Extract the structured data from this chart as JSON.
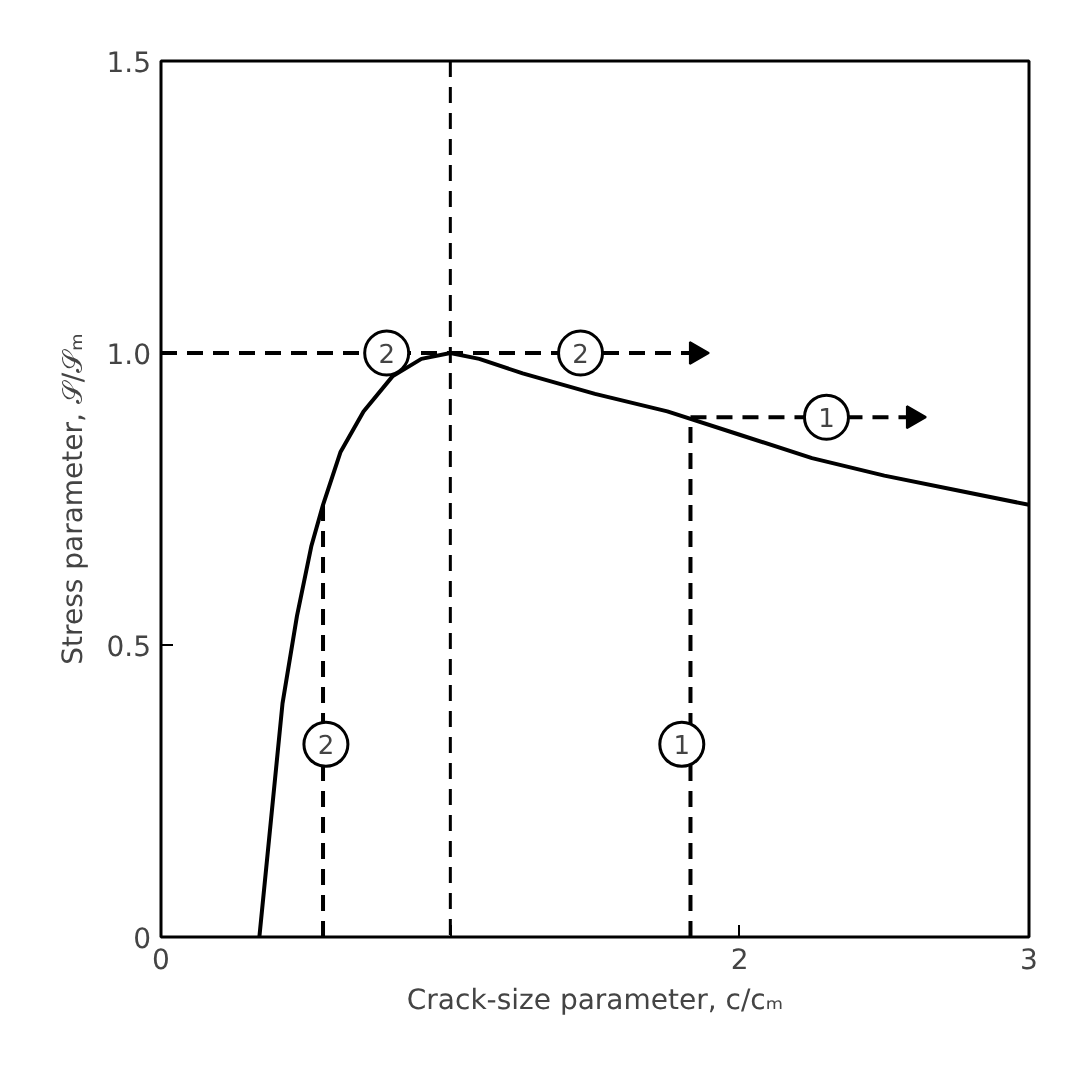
{
  "chart_data": {
    "type": "line",
    "xlabel": "Crack-size parameter, c/cₘ",
    "ylabel": "Stress parameter, 𝒮/𝒮ₘ",
    "xlim": [
      0,
      3
    ],
    "ylim": [
      0,
      1.5
    ],
    "xticks": [
      0,
      {
        "value": 1,
        "label": null
      },
      2,
      3
    ],
    "yticks": [
      0,
      0.5,
      {
        "value": 1,
        "label": "1.0"
      },
      1.5
    ],
    "grid": false,
    "series": [
      {
        "color": "#000000",
        "line_style": "solid",
        "x": [
          0.34,
          0.38,
          0.42,
          0.47,
          0.52,
          0.56,
          0.62,
          0.7,
          0.8,
          0.9,
          1.0,
          1.1,
          1.25,
          1.5,
          1.75,
          2.0,
          2.25,
          2.5,
          2.75,
          3.0
        ],
        "values": [
          0,
          0.2,
          0.4,
          0.55,
          0.67,
          0.74,
          0.83,
          0.9,
          0.96,
          0.99,
          1.0,
          0.99,
          0.965,
          0.93,
          0.9,
          0.86,
          0.82,
          0.79,
          0.765,
          0.74
        ]
      },
      {
        "color": "#000000",
        "line_style": "dashed",
        "x": [
          0.56,
          0.56
        ],
        "values": [
          0,
          0.74
        ]
      },
      {
        "color": "#000000",
        "line_style": "dashed",
        "x": [
          1.83,
          1.83
        ],
        "values": [
          0,
          0.89
        ]
      },
      {
        "color": "#000000",
        "line_style": "dashed",
        "marker": "triangle",
        "x": [
          0,
          1.85
        ],
        "values": [
          1,
          1
        ]
      },
      {
        "color": "#000000",
        "line_style": "dashed",
        "marker": "triangle",
        "x": [
          1.83,
          2.6
        ],
        "values": [
          0.89,
          0.89
        ]
      }
    ],
    "ref_lines": [
      {
        "axis": "x",
        "value": 1,
        "line_style": "dashed",
        "color": "#000000"
      }
    ],
    "annotations": [
      {
        "text": "2",
        "x": 0.78,
        "y": 1.0
      },
      {
        "text": "2",
        "x": 1.45,
        "y": 1.0
      },
      {
        "text": "1",
        "x": 2.3,
        "y": 0.89
      },
      {
        "text": "2",
        "x": 0.57,
        "y": 0.33
      },
      {
        "text": "1",
        "x": 1.8,
        "y": 0.33
      }
    ]
  }
}
